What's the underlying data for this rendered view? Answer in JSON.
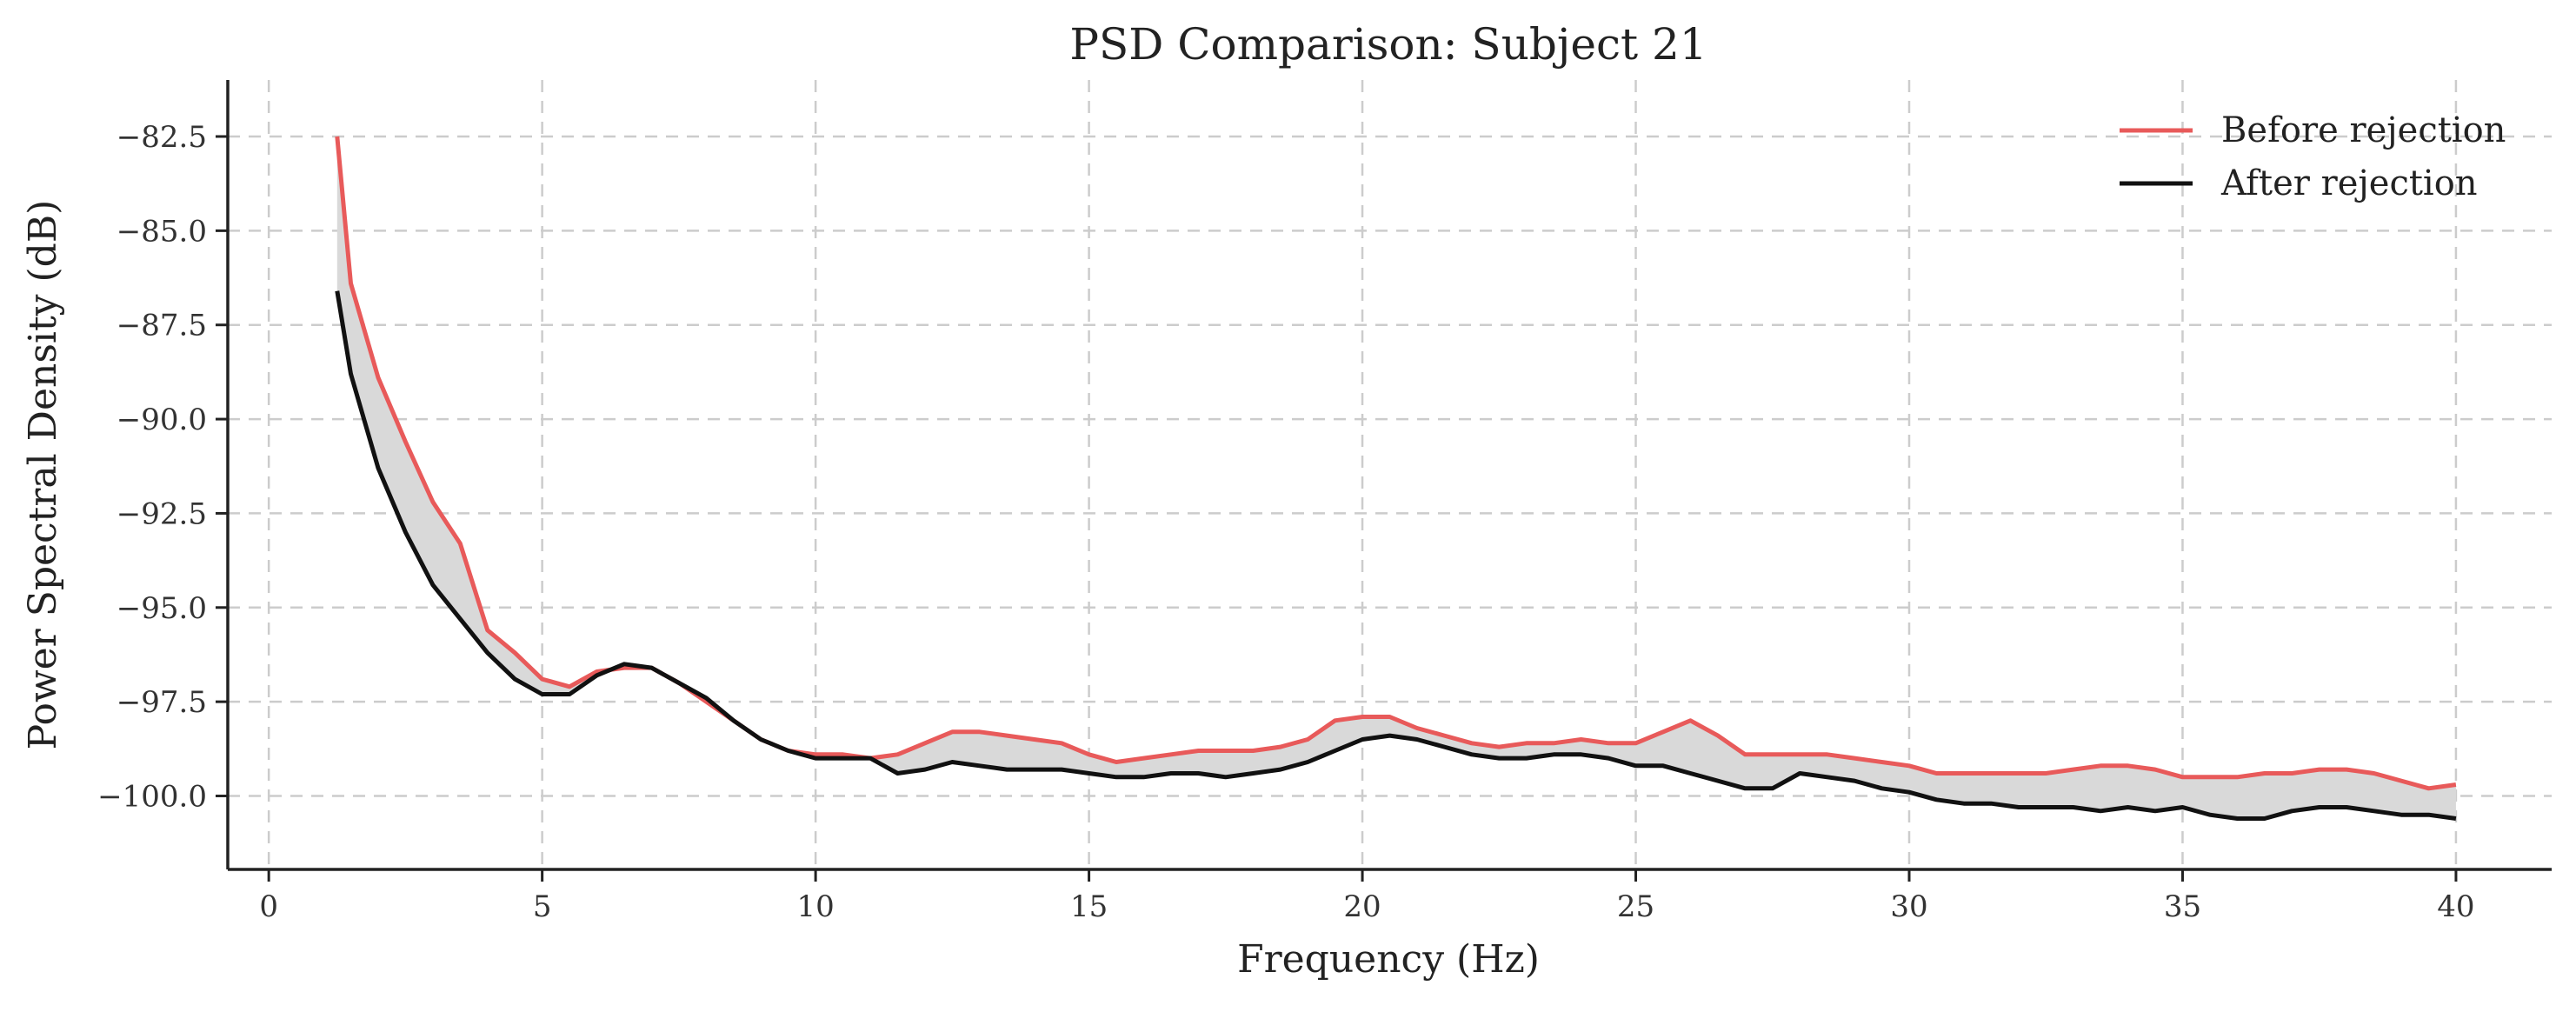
{
  "chart_data": {
    "type": "line",
    "title": "PSD Comparison: Subject 21",
    "xlabel": "Frequency (Hz)",
    "ylabel": "Power Spectral Density (dB)",
    "xlim": [
      -0.75,
      41.75
    ],
    "ylim": [
      -101.95,
      -81.0
    ],
    "xticks": [
      0,
      5,
      10,
      15,
      20,
      25,
      30,
      35,
      40
    ],
    "yticks": [
      -100.0,
      -97.5,
      -95.0,
      -92.5,
      -90.0,
      -87.5,
      -85.0,
      -82.5
    ],
    "xtick_labels": [
      "0",
      "5",
      "10",
      "15",
      "20",
      "25",
      "30",
      "35",
      "40"
    ],
    "ytick_labels": [
      "−100.0",
      "−97.5",
      "−95.0",
      "−92.5",
      "−90.0",
      "−87.5",
      "−85.0",
      "−82.5"
    ],
    "grid": true,
    "legend_position": "top-right",
    "fill_between": {
      "color": "#d9d9d9"
    },
    "x": [
      1.25,
      1.5,
      2.0,
      2.5,
      3.0,
      3.5,
      4.0,
      4.5,
      5.0,
      5.5,
      6.0,
      6.5,
      7.0,
      7.5,
      8.0,
      8.5,
      9.0,
      9.5,
      10.0,
      10.5,
      11.0,
      11.5,
      12.0,
      12.5,
      13.0,
      13.5,
      14.0,
      14.5,
      15.0,
      15.5,
      16.0,
      16.5,
      17.0,
      17.5,
      18.0,
      18.5,
      19.0,
      19.5,
      20.0,
      20.5,
      21.0,
      21.5,
      22.0,
      22.5,
      23.0,
      23.5,
      24.0,
      24.5,
      25.0,
      25.5,
      26.0,
      26.5,
      27.0,
      27.5,
      28.0,
      28.5,
      29.0,
      29.5,
      30.0,
      30.5,
      31.0,
      31.5,
      32.0,
      32.5,
      33.0,
      33.5,
      34.0,
      34.5,
      35.0,
      35.5,
      36.0,
      36.5,
      37.0,
      37.5,
      38.0,
      38.5,
      39.0,
      39.5,
      40.0
    ],
    "series": [
      {
        "name": "Before rejection",
        "color": "#e85a5a",
        "values": [
          -82.5,
          -86.4,
          -88.9,
          -90.6,
          -92.2,
          -93.3,
          -95.6,
          -96.2,
          -96.9,
          -97.1,
          -96.7,
          -96.6,
          -96.6,
          -97.0,
          -97.5,
          -98.0,
          -98.5,
          -98.8,
          -98.9,
          -98.9,
          -99.0,
          -98.9,
          -98.6,
          -98.3,
          -98.3,
          -98.4,
          -98.5,
          -98.6,
          -98.9,
          -99.1,
          -99.0,
          -98.9,
          -98.8,
          -98.8,
          -98.8,
          -98.7,
          -98.5,
          -98.0,
          -97.9,
          -97.9,
          -98.2,
          -98.4,
          -98.6,
          -98.7,
          -98.6,
          -98.6,
          -98.5,
          -98.6,
          -98.6,
          -98.3,
          -98.0,
          -98.4,
          -98.9,
          -98.9,
          -98.9,
          -98.9,
          -99.0,
          -99.1,
          -99.2,
          -99.4,
          -99.4,
          -99.4,
          -99.4,
          -99.4,
          -99.3,
          -99.2,
          -99.2,
          -99.3,
          -99.5,
          -99.5,
          -99.5,
          -99.4,
          -99.4,
          -99.3,
          -99.3,
          -99.4,
          -99.6,
          -99.8,
          -99.7
        ]
      },
      {
        "name": "After rejection",
        "color": "#111111",
        "values": [
          -86.6,
          -88.8,
          -91.3,
          -93.0,
          -94.4,
          -95.3,
          -96.2,
          -96.9,
          -97.3,
          -97.3,
          -96.8,
          -96.5,
          -96.6,
          -97.0,
          -97.4,
          -98.0,
          -98.5,
          -98.8,
          -99.0,
          -99.0,
          -99.0,
          -99.4,
          -99.3,
          -99.1,
          -99.2,
          -99.3,
          -99.3,
          -99.3,
          -99.4,
          -99.5,
          -99.5,
          -99.4,
          -99.4,
          -99.5,
          -99.4,
          -99.3,
          -99.1,
          -98.8,
          -98.5,
          -98.4,
          -98.5,
          -98.7,
          -98.9,
          -99.0,
          -99.0,
          -98.9,
          -98.9,
          -99.0,
          -99.2,
          -99.2,
          -99.4,
          -99.6,
          -99.8,
          -99.8,
          -99.4,
          -99.5,
          -99.6,
          -99.8,
          -99.9,
          -100.1,
          -100.2,
          -100.2,
          -100.3,
          -100.3,
          -100.3,
          -100.4,
          -100.3,
          -100.4,
          -100.3,
          -100.5,
          -100.6,
          -100.6,
          -100.4,
          -100.3,
          -100.3,
          -100.4,
          -100.5,
          -100.5,
          -100.6
        ]
      }
    ]
  }
}
